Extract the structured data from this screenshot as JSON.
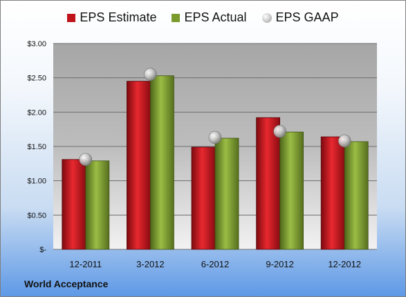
{
  "chart_data": {
    "type": "bar",
    "categories": [
      "12-2011",
      "3-2012",
      "6-2012",
      "9-2012",
      "12-2012"
    ],
    "series": [
      {
        "name": "EPS Estimate",
        "kind": "bar",
        "color": "#c0141c",
        "values": [
          1.31,
          2.45,
          1.49,
          1.92,
          1.64
        ]
      },
      {
        "name": "EPS Actual",
        "kind": "bar",
        "color": "#7a9a2e",
        "values": [
          1.29,
          2.53,
          1.62,
          1.71,
          1.57
        ]
      },
      {
        "name": "EPS GAAP",
        "kind": "marker",
        "color": "#a9a9a9",
        "values": [
          1.31,
          2.55,
          1.63,
          1.72,
          1.58
        ]
      }
    ],
    "ylim": [
      0,
      3
    ],
    "y_ticks": [
      0,
      0.5,
      1,
      1.5,
      2,
      2.5,
      3
    ],
    "y_tick_labels": [
      "$-",
      "$0.50",
      "$1.00",
      "$1.50",
      "$2.00",
      "$2.50",
      "$3.00"
    ],
    "grid": true,
    "legend_position": "top-center",
    "footer": "World Acceptance"
  }
}
